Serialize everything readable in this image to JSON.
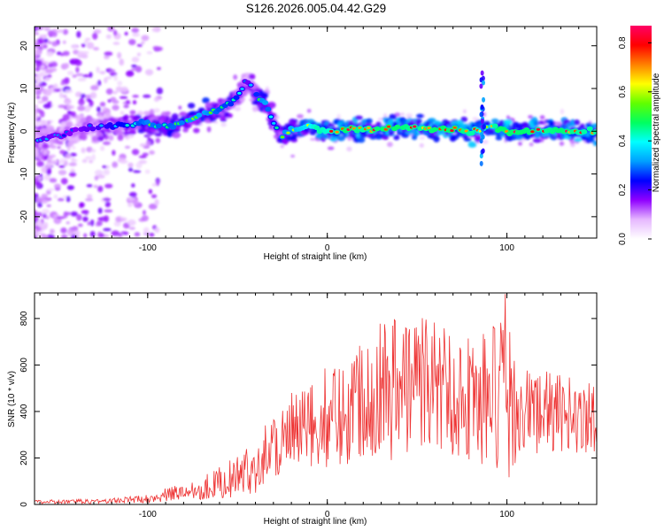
{
  "chart_data": [
    {
      "type": "heatmap",
      "title": "S126.2026.005.04.42.G29",
      "xlabel": "Height of straight line (km)",
      "ylabel": "Frequency (Hz)",
      "xlim": [
        -163,
        150
      ],
      "ylim": [
        -25,
        24.5
      ],
      "xticks": [
        -100,
        0,
        100
      ],
      "yticks": [
        -20,
        -10,
        0,
        10,
        20
      ],
      "grid": false,
      "colorbar": {
        "label": "Normalized spectral amplitude",
        "range": [
          0,
          0.87
        ],
        "ticks": [
          0.0,
          0.2,
          0.4,
          0.6,
          0.8
        ],
        "tick_labels": [
          "0.0",
          "0.2",
          "0.4",
          "0.6",
          "0.8"
        ],
        "colormap": [
          "#ffffff",
          "#e6b8ff",
          "#9000ff",
          "#0000ff",
          "#00a0ff",
          "#00ffff",
          "#00ff60",
          "#60ff00",
          "#ffff00",
          "#ff8000",
          "#ff0000",
          "#ff0066"
        ]
      },
      "ridge": {
        "description": "main spectral ridge (frequency of peak amplitude vs height)",
        "x": [
          -160,
          -150,
          -140,
          -130,
          -120,
          -110,
          -100,
          -90,
          -80,
          -70,
          -60,
          -50,
          -45,
          -40,
          -35,
          -30,
          -25,
          -20,
          -15,
          -10,
          -5,
          0,
          10,
          20,
          30,
          40,
          50,
          60,
          70,
          80,
          85,
          88,
          90,
          95,
          100,
          110,
          120,
          130,
          140,
          150
        ],
        "y": [
          -2,
          -1,
          0,
          1,
          1,
          1.5,
          2,
          1,
          2,
          4,
          5,
          8,
          12,
          9,
          7,
          2,
          -1,
          0,
          0.5,
          1.5,
          0.5,
          0,
          0.5,
          0.5,
          0.5,
          1,
          1,
          0.5,
          0.5,
          0,
          0,
          0.5,
          1,
          0.5,
          0,
          0,
          0,
          0,
          0,
          0
        ],
        "amplitude": [
          0.35,
          0.3,
          0.3,
          0.35,
          0.4,
          0.45,
          0.55,
          0.5,
          0.55,
          0.6,
          0.5,
          0.45,
          0.3,
          0.45,
          0.6,
          0.4,
          0.55,
          0.6,
          0.65,
          0.7,
          0.8,
          0.75,
          0.85,
          0.8,
          0.85,
          0.85,
          0.8,
          0.85,
          0.85,
          0.8,
          0.75,
          0.6,
          0.7,
          0.85,
          0.85,
          0.85,
          0.8,
          0.85,
          0.8,
          0.8
        ]
      }
    },
    {
      "type": "line",
      "title": "",
      "xlabel": "Height of straight line (km)",
      "ylabel": "SNR (10 * v/v)",
      "xlim": [
        -163,
        150
      ],
      "ylim": [
        0,
        910
      ],
      "xticks": [
        -100,
        0,
        100
      ],
      "yticks": [
        0,
        200,
        400,
        600,
        800
      ],
      "grid": false,
      "color": "#ee3333",
      "envelope": {
        "description": "approximate mean SNR and fluctuation amplitude vs height",
        "x": [
          -163,
          -140,
          -120,
          -100,
          -90,
          -80,
          -70,
          -60,
          -50,
          -40,
          -35,
          -30,
          -20,
          -10,
          0,
          10,
          20,
          30,
          40,
          50,
          60,
          70,
          80,
          90,
          95,
          100,
          105,
          110,
          120,
          130,
          140,
          150
        ],
        "mean": [
          10,
          12,
          15,
          25,
          40,
          55,
          70,
          95,
          120,
          160,
          220,
          260,
          300,
          320,
          380,
          400,
          480,
          520,
          500,
          540,
          520,
          480,
          460,
          450,
          430,
          420,
          430,
          400,
          400,
          390,
          380,
          380
        ],
        "spread": [
          8,
          10,
          12,
          18,
          30,
          40,
          50,
          70,
          90,
          110,
          130,
          160,
          180,
          200,
          220,
          240,
          280,
          320,
          330,
          300,
          300,
          280,
          280,
          320,
          420,
          350,
          250,
          200,
          180,
          170,
          160,
          170
        ]
      },
      "peak": {
        "x": 99,
        "y": 905
      }
    }
  ]
}
